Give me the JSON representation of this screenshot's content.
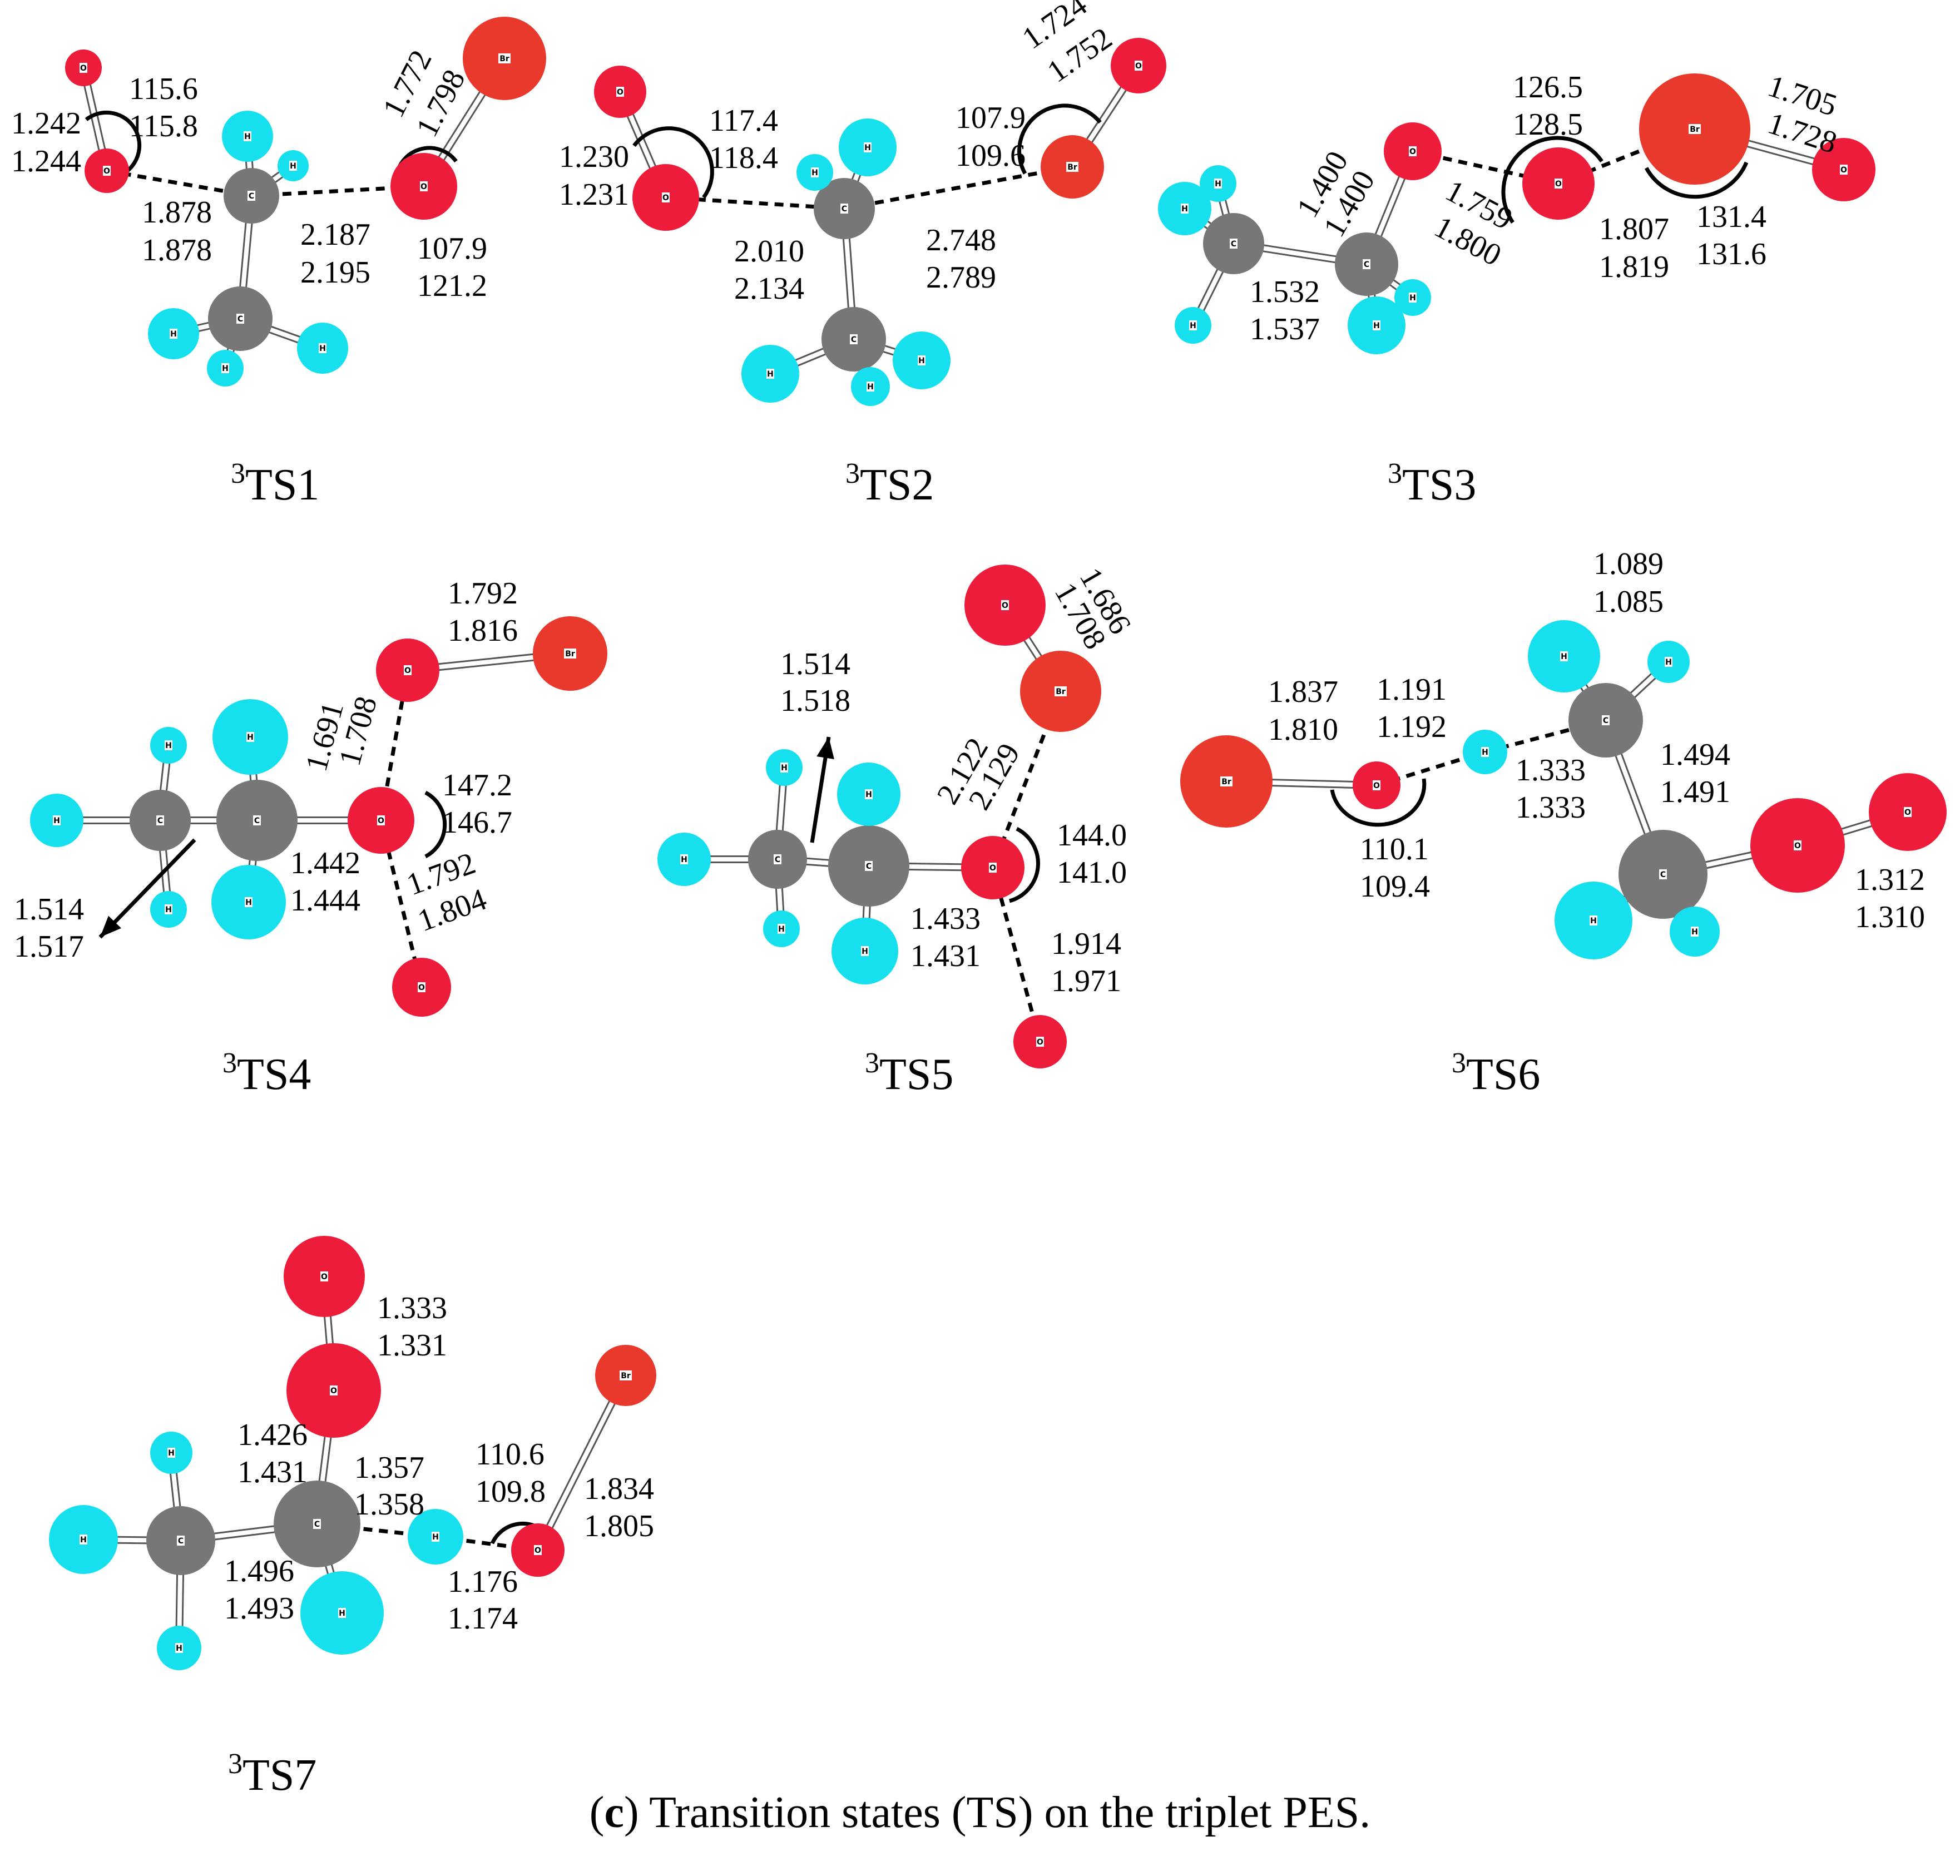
{
  "colors": {
    "C": "#777777",
    "H": "#17e0ee",
    "O": "#ee1c3b",
    "Br": "#e8392c"
  },
  "atom_symbols": {
    "C": "C",
    "H": "H",
    "O": "O",
    "Br": "Br"
  },
  "caption": {
    "letter": "c",
    "open": "(",
    "close": ")",
    "text": " Transition states (TS) on the triplet PES."
  },
  "structures": [
    {
      "id": "ts1",
      "sup": "3",
      "name": "TS1",
      "labels": [
        {
          "id": "a",
          "text": "115.6"
        },
        {
          "id": "b",
          "text": "115.8"
        },
        {
          "id": "c",
          "text": "1.242"
        },
        {
          "id": "d",
          "text": "1.244"
        },
        {
          "id": "e",
          "text": "1.878"
        },
        {
          "id": "f",
          "text": "1.878"
        },
        {
          "id": "g",
          "text": "2.187"
        },
        {
          "id": "h",
          "text": "2.195"
        },
        {
          "id": "i",
          "text": "1.772"
        },
        {
          "id": "j",
          "text": "1.798"
        },
        {
          "id": "k",
          "text": "107.9"
        },
        {
          "id": "l",
          "text": "121.2"
        }
      ]
    },
    {
      "id": "ts2",
      "sup": "3",
      "name": "TS2",
      "labels": [
        {
          "id": "a",
          "text": "117.4"
        },
        {
          "id": "b",
          "text": "118.4"
        },
        {
          "id": "c",
          "text": "1.230"
        },
        {
          "id": "d",
          "text": "1.231"
        },
        {
          "id": "e",
          "text": "2.010"
        },
        {
          "id": "f",
          "text": "2.134"
        },
        {
          "id": "g",
          "text": "2.748"
        },
        {
          "id": "h",
          "text": "2.789"
        },
        {
          "id": "i",
          "text": "107.9"
        },
        {
          "id": "j",
          "text": "109.6"
        },
        {
          "id": "k",
          "text": "1.724"
        },
        {
          "id": "l",
          "text": "1.752"
        }
      ]
    },
    {
      "id": "ts3",
      "sup": "3",
      "name": "TS3",
      "labels": [
        {
          "id": "a",
          "text": "126.5"
        },
        {
          "id": "b",
          "text": "128.5"
        },
        {
          "id": "c",
          "text": "1.705"
        },
        {
          "id": "d",
          "text": "1.728"
        },
        {
          "id": "e",
          "text": "1.400"
        },
        {
          "id": "f",
          "text": "1.400"
        },
        {
          "id": "g",
          "text": "1.759"
        },
        {
          "id": "h",
          "text": "1.800"
        },
        {
          "id": "i",
          "text": "1.807"
        },
        {
          "id": "j",
          "text": "1.819"
        },
        {
          "id": "k",
          "text": "131.4"
        },
        {
          "id": "l",
          "text": "131.6"
        },
        {
          "id": "m",
          "text": "1.532"
        },
        {
          "id": "n",
          "text": "1.537"
        }
      ]
    },
    {
      "id": "ts4",
      "sup": "3",
      "name": "TS4",
      "labels": [
        {
          "id": "a",
          "text": "1.792"
        },
        {
          "id": "b",
          "text": "1.816"
        },
        {
          "id": "c",
          "text": "1.691"
        },
        {
          "id": "d",
          "text": "1.708"
        },
        {
          "id": "e",
          "text": "147.2"
        },
        {
          "id": "f",
          "text": "146.7"
        },
        {
          "id": "g",
          "text": "1.442"
        },
        {
          "id": "h",
          "text": "1.444"
        },
        {
          "id": "i",
          "text": "1.792"
        },
        {
          "id": "j",
          "text": "1.804"
        },
        {
          "id": "k",
          "text": "1.514"
        },
        {
          "id": "l",
          "text": "1.517"
        }
      ]
    },
    {
      "id": "ts5",
      "sup": "3",
      "name": "TS5",
      "labels": [
        {
          "id": "a",
          "text": "1.686"
        },
        {
          "id": "b",
          "text": "1.708"
        },
        {
          "id": "c",
          "text": "1.514"
        },
        {
          "id": "d",
          "text": "1.518"
        },
        {
          "id": "e",
          "text": "2.122"
        },
        {
          "id": "f",
          "text": "2.129"
        },
        {
          "id": "g",
          "text": "144.0"
        },
        {
          "id": "h",
          "text": "141.0"
        },
        {
          "id": "i",
          "text": "1.433"
        },
        {
          "id": "j",
          "text": "1.431"
        },
        {
          "id": "k",
          "text": "1.914"
        },
        {
          "id": "l",
          "text": "1.971"
        }
      ]
    },
    {
      "id": "ts6",
      "sup": "3",
      "name": "TS6",
      "labels": [
        {
          "id": "a",
          "text": "1.089"
        },
        {
          "id": "b",
          "text": "1.085"
        },
        {
          "id": "c",
          "text": "1.837"
        },
        {
          "id": "d",
          "text": "1.810"
        },
        {
          "id": "e",
          "text": "1.191"
        },
        {
          "id": "f",
          "text": "1.192"
        },
        {
          "id": "g",
          "text": "1.494"
        },
        {
          "id": "h",
          "text": "1.491"
        },
        {
          "id": "i",
          "text": "1.333"
        },
        {
          "id": "j",
          "text": "1.333"
        },
        {
          "id": "k",
          "text": "110.1"
        },
        {
          "id": "l",
          "text": "109.4"
        },
        {
          "id": "m",
          "text": "1.312"
        },
        {
          "id": "n",
          "text": "1.310"
        }
      ]
    },
    {
      "id": "ts7",
      "sup": "3",
      "name": "TS7",
      "labels": [
        {
          "id": "a",
          "text": "1.333"
        },
        {
          "id": "b",
          "text": "1.331"
        },
        {
          "id": "c",
          "text": "1.426"
        },
        {
          "id": "d",
          "text": "1.431"
        },
        {
          "id": "e",
          "text": "1.357"
        },
        {
          "id": "f",
          "text": "1.358"
        },
        {
          "id": "g",
          "text": "110.6"
        },
        {
          "id": "h",
          "text": "109.8"
        },
        {
          "id": "i",
          "text": "1.834"
        },
        {
          "id": "j",
          "text": "1.805"
        },
        {
          "id": "k",
          "text": "1.496"
        },
        {
          "id": "l",
          "text": "1.493"
        },
        {
          "id": "m",
          "text": "1.176"
        },
        {
          "id": "n",
          "text": "1.174"
        }
      ]
    }
  ]
}
